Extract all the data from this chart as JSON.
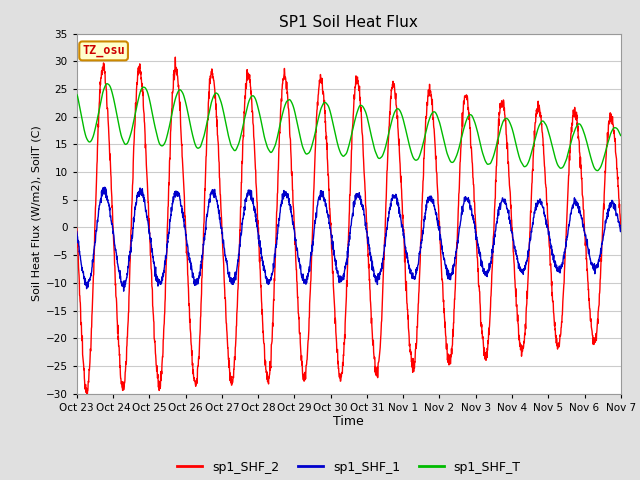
{
  "title": "SP1 Soil Heat Flux",
  "xlabel": "Time",
  "ylabel": "Soil Heat Flux (W/m2), SoilT (C)",
  "ylim": [
    -30,
    35
  ],
  "fig_bg_color": "#e0e0e0",
  "plot_bg_color": "#ffffff",
  "grid_color": "#cccccc",
  "tz_label": "TZ_osu",
  "tz_bg": "#ffffcc",
  "tz_border": "#cc8800",
  "tz_text_color": "#cc0000",
  "line_colors": {
    "shf2": "#ff0000",
    "shf1": "#0000cc",
    "shft": "#00bb00"
  },
  "legend_labels": [
    "sp1_SHF_2",
    "sp1_SHF_1",
    "sp1_SHF_T"
  ],
  "x_tick_labels": [
    "Oct 23",
    "Oct 24",
    "Oct 25",
    "Oct 26",
    "Oct 27",
    "Oct 28",
    "Oct 29",
    "Oct 30",
    "Oct 31",
    "Nov 1",
    "Nov 2",
    "Nov 3",
    "Nov 4",
    "Nov 5",
    "Nov 6",
    "Nov 7"
  ],
  "n_days": 15,
  "pts_per_day": 144
}
